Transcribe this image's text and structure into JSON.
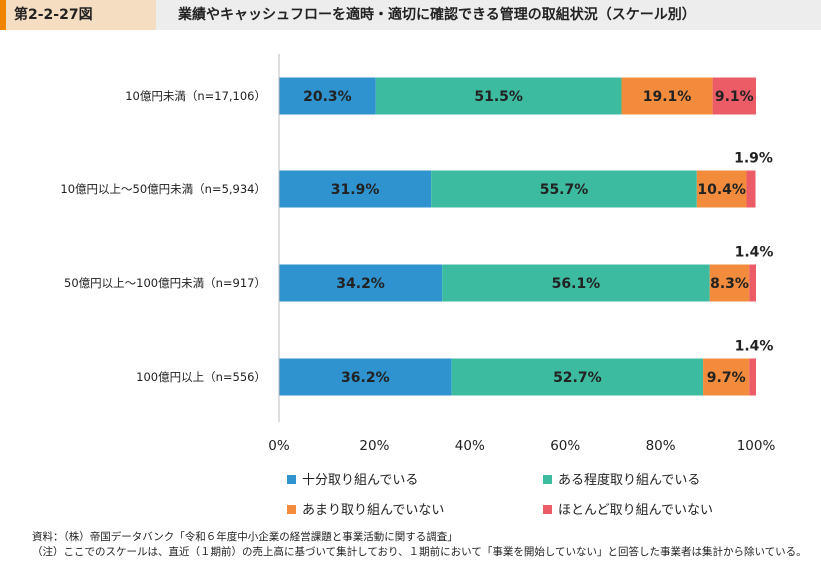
{
  "figure": {
    "number": "第2-2-27図",
    "title": "業績やキャッシュフローを適時・適切に確認できる管理の取組状況（スケール別）"
  },
  "chart_data": {
    "type": "bar",
    "orientation": "horizontal",
    "stacked": true,
    "categories": [
      "10億円未満（n=17,106）",
      "10億円以上〜50億円未満（n=5,934）",
      "50億円以上〜100億円未満（n=917）",
      "100億円以上（n=556）"
    ],
    "series": [
      {
        "name": "十分取り組んでいる",
        "color": "#2f93cf",
        "values": [
          20.3,
          31.9,
          34.2,
          36.2
        ],
        "labels": [
          "20.3%",
          "31.9%",
          "34.2%",
          "36.2%"
        ]
      },
      {
        "name": "ある程度取り組んでいる",
        "color": "#3dbba0",
        "values": [
          51.5,
          55.7,
          56.1,
          52.7
        ],
        "labels": [
          "51.5%",
          "55.7%",
          "56.1%",
          "52.7%"
        ]
      },
      {
        "name": "あまり取り組んでいない",
        "color": "#f28c3c",
        "values": [
          19.1,
          10.4,
          8.3,
          9.7
        ],
        "labels": [
          "19.1%",
          "10.4%",
          "8.3%",
          "9.7%"
        ]
      },
      {
        "name": "ほとんど取り組んでいない",
        "color": "#eb5c66",
        "values": [
          9.1,
          1.9,
          1.4,
          1.4
        ],
        "labels": [
          "9.1%",
          "1.9%",
          "1.4%",
          "1.4%"
        ]
      }
    ],
    "xticks": [
      "0%",
      "20%",
      "40%",
      "60%",
      "80%",
      "100%"
    ],
    "xlim": [
      0,
      100
    ],
    "grid": false,
    "legend_position": "bottom"
  },
  "source": {
    "line1": "資料：（株）帝国データバンク「令和６年度中小企業の経営課題と事業活動に関する調査」",
    "line2": "（注）ここでのスケールは、直近（１期前）の売上高に基づいて集計しており、１期前において「事業を開始していない」と回答した事業者は集計から除いている。"
  }
}
